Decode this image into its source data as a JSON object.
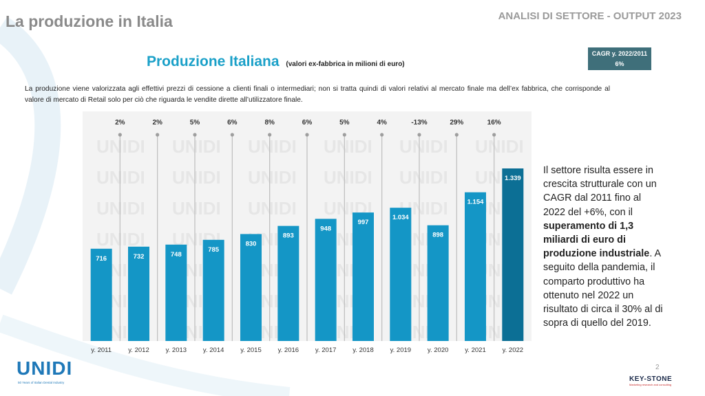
{
  "header": {
    "page_title": "La produzione in Italia",
    "section_title": "ANALISI DI SETTORE  - OUTPUT 2023"
  },
  "chart_heading": {
    "title": "Produzione Italiana",
    "subtitle": "(valori ex-fabbrica in milioni di euro)"
  },
  "cagr_box": {
    "label": "CAGR y. 2022/2011",
    "value": "6%"
  },
  "intro_text": "La produzione viene valorizzata agli effettivi prezzi di cessione a clienti finali o intermediari; non si tratta quindi di valori relativi al mercato finale ma dell’ex fabbrica, che corrisponde al valore di mercato di Retail solo per ciò che riguarda le vendite dirette all’utilizzatore finale.",
  "right_text": {
    "part1": "Il settore risulta essere in crescita strutturale con un CAGR dal 2011 fino al 2022 del +6%, con il ",
    "bold": "superamento di 1,3 miliardi di euro di produzione industriale",
    "part2": ". A seguito della pandemia, il comparto produttivo  ha ottenuto nel 2022 un risultato di circa il 30% al di sopra di quello del 2019."
  },
  "page_number": "2",
  "logos": {
    "unidi_name": "UNIDI",
    "unidi_tagline": "50 Years of Italian Dental Industry",
    "keystone_name": "KEY-STONE",
    "keystone_tagline": "Marketing research and consulting",
    "watermark": "UNIDI"
  },
  "colors": {
    "bar": "#1496c6",
    "bar_highlight": "#0c6f95",
    "growth_line": "#bdbdbd",
    "plot_background": "#f3f3f3"
  },
  "chart_data": {
    "type": "bar",
    "categories": [
      "y. 2011",
      "y. 2012",
      "y. 2013",
      "y. 2014",
      "y. 2015",
      "y. 2016",
      "y. 2017",
      "y. 2018",
      "y. 2019",
      "y. 2020",
      "y. 2021",
      "y. 2022"
    ],
    "values": [
      716,
      732,
      748,
      785,
      830,
      893,
      948,
      997,
      1034,
      898,
      1154,
      1339
    ],
    "value_labels": [
      "716",
      "732",
      "748",
      "785",
      "830",
      "893",
      "948",
      "997",
      "1.034",
      "898",
      "1.154",
      "1.339"
    ],
    "growth_labels": [
      "2%",
      "2%",
      "5%",
      "6%",
      "8%",
      "6%",
      "5%",
      "4%",
      "-13%",
      "29%",
      "16%"
    ],
    "highlight_last": true,
    "ylim": [
      0,
      1500
    ],
    "grid": false
  }
}
